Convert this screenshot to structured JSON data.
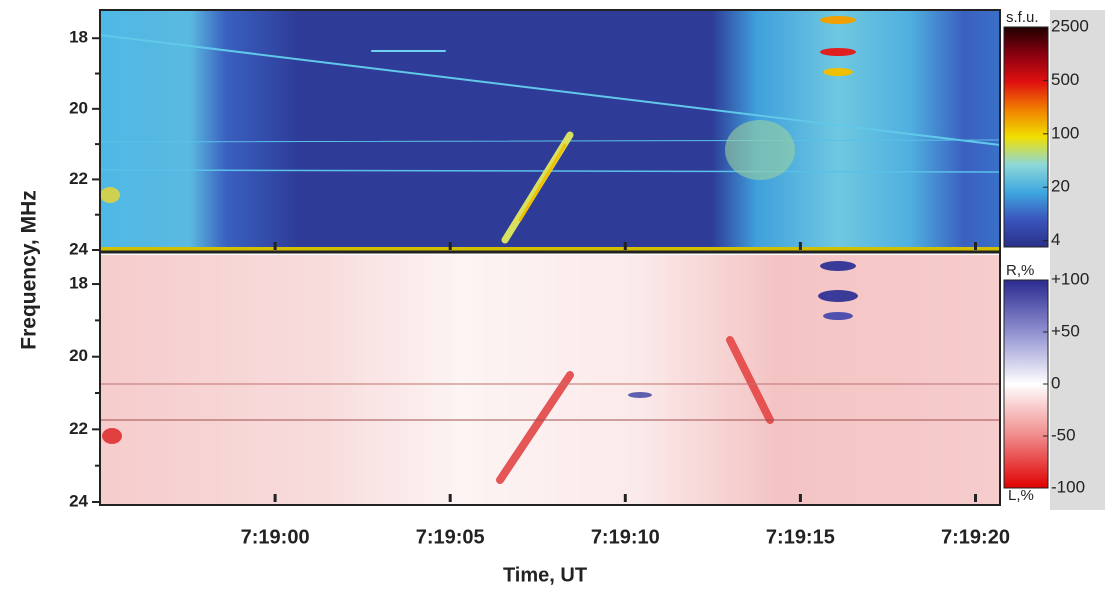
{
  "chart_data": [
    {
      "type": "spectrogram",
      "ylabel": "Frequency, MHz",
      "ylim": [
        24,
        17.2
      ],
      "yticks": [
        18,
        20,
        22,
        24
      ],
      "yminor": [
        19,
        21,
        23
      ],
      "colorbar": {
        "title": "s.f.u.",
        "scale": "log",
        "clim": [
          3.3,
          2500
        ],
        "ticks": [
          4,
          20,
          100,
          500,
          2500
        ],
        "colors": [
          "#2a3088",
          "#3a55bd",
          "#3fa8e0",
          "#8ed8d8",
          "#f0e000",
          "#f08000",
          "#e01010",
          "#8a0010",
          "#200000"
        ]
      }
    },
    {
      "type": "spectrogram",
      "xlabel": "Time, UT",
      "ylim": [
        24,
        17.2
      ],
      "yticks": [
        18,
        20,
        22,
        24
      ],
      "yminor": [
        19,
        21,
        23
      ],
      "xlim": [
        26335,
        26360.7
      ],
      "xticks": [
        {
          "value": 26340,
          "label": "7:19:00"
        },
        {
          "value": 26345,
          "label": "7:19:05"
        },
        {
          "value": 26350,
          "label": "7:19:10"
        },
        {
          "value": 26355,
          "label": "7:19:15"
        },
        {
          "value": 26360,
          "label": "7:19:20"
        }
      ],
      "colorbar": {
        "title": "R,%",
        "bottom_title": "L,%",
        "scale": "linear",
        "clim": [
          -100,
          100
        ],
        "ticks": [
          {
            "value": 100,
            "label": "+100"
          },
          {
            "value": 50,
            "label": "+50"
          },
          0,
          -50,
          -100
        ],
        "colors": [
          "#e00000",
          "#f08a8a",
          "#ffffff",
          "#9090d0",
          "#2a2a90"
        ]
      }
    }
  ]
}
